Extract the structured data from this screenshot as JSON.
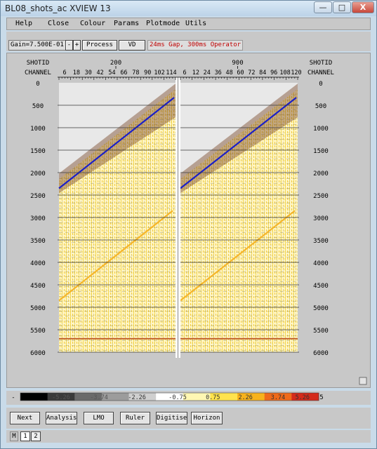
{
  "window": {
    "title": "BL08_shots_ac XVIEW 13",
    "minimize": "—",
    "maximize": "□",
    "close": "X"
  },
  "menu": [
    "Help",
    "Close",
    "Colour",
    "Params",
    "Plotmode",
    "Utils"
  ],
  "toolbar": {
    "gain": "Gain=7.500E-01",
    "gain_minus": "-",
    "gain_plus": "+",
    "process": "Process",
    "vd": "VD",
    "message": "24ms Gap, 300ms Operator"
  },
  "plot": {
    "shotid_label": "SHOTID",
    "channel_label": "CHANNEL",
    "panels": [
      {
        "shotid": "200",
        "channels": [
          "6",
          "18",
          "30",
          "42",
          "54",
          "66",
          "78",
          "90",
          "102",
          "114"
        ]
      },
      {
        "shotid": "900",
        "channels": [
          "6",
          "12",
          "24",
          "36",
          "48",
          "60",
          "72",
          "84",
          "96",
          "108",
          "120"
        ]
      }
    ],
    "time_ticks": [
      "0",
      "500",
      "1000",
      "1500",
      "2000",
      "2500",
      "3000",
      "3500",
      "4000",
      "4500",
      "5000",
      "5500",
      "6000"
    ],
    "line_colors": {
      "direct_wave": "#1a1fc8",
      "mute_line": "#f5b52a",
      "horizon": "#c0602a"
    }
  },
  "colorbar": {
    "labels": [
      "-5.26",
      "-3.74",
      "-2.26",
      "-0.75",
      "0.75",
      "2.26",
      "3.74",
      "5.26"
    ],
    "end_labels": [
      "-",
      "5"
    ],
    "colors": [
      "#000000",
      "#3a3a3a",
      "#6a6a6a",
      "#9c9c9c",
      "#cfcfcf",
      "#ffffff",
      "#fff7b3",
      "#ffe34d",
      "#f7b21c",
      "#ef6a1a",
      "#d42a1a"
    ]
  },
  "bottom_buttons": [
    "Next",
    "Analysis",
    "LMO",
    "Ruler",
    "Digitise",
    "Horizon"
  ],
  "pages": {
    "label": "M",
    "items": [
      "1",
      "2"
    ]
  }
}
